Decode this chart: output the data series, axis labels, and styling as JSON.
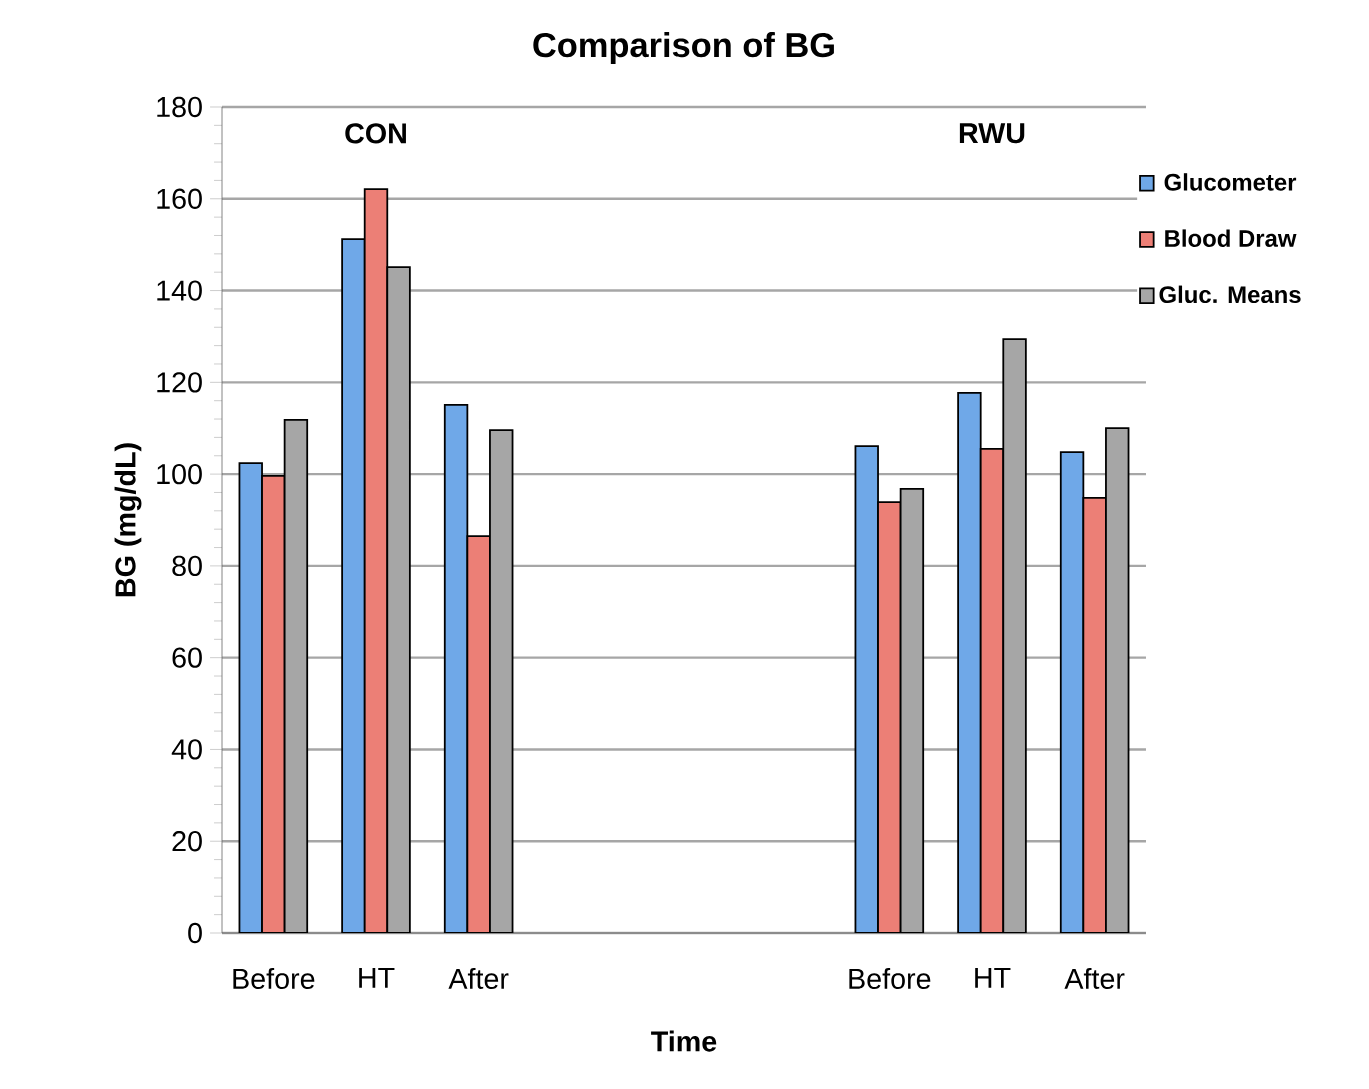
{
  "chart_data": {
    "type": "bar",
    "title": "Comparison of BG",
    "xlabel": "Time",
    "ylabel": "BG (mg/dL)",
    "categories": [
      "Before",
      "HT",
      "After",
      null,
      null,
      null,
      "Before",
      "HT",
      "After"
    ],
    "series": [
      {
        "name": "Glucometer",
        "color": "#6fa8e8",
        "values": [
          102.4,
          151.2,
          115.1,
          null,
          null,
          null,
          106.1,
          117.7,
          104.8
        ]
      },
      {
        "name": "Blood Draw",
        "color": "#ec7f76",
        "values": [
          99.6,
          162.1,
          86.5,
          null,
          null,
          null,
          93.9,
          105.5,
          94.8
        ]
      },
      {
        "name": "Gluc. Means",
        "color": "#a6a6a6",
        "values": [
          111.8,
          145.1,
          109.6,
          null,
          null,
          null,
          96.8,
          129.4,
          110.0
        ]
      }
    ],
    "ylim": [
      0,
      180
    ],
    "yticks": [
      0,
      20,
      40,
      60,
      80,
      100,
      120,
      140,
      160,
      180
    ],
    "grid": "y",
    "legend": "right",
    "annotations": [
      "CON",
      "RWU"
    ]
  }
}
